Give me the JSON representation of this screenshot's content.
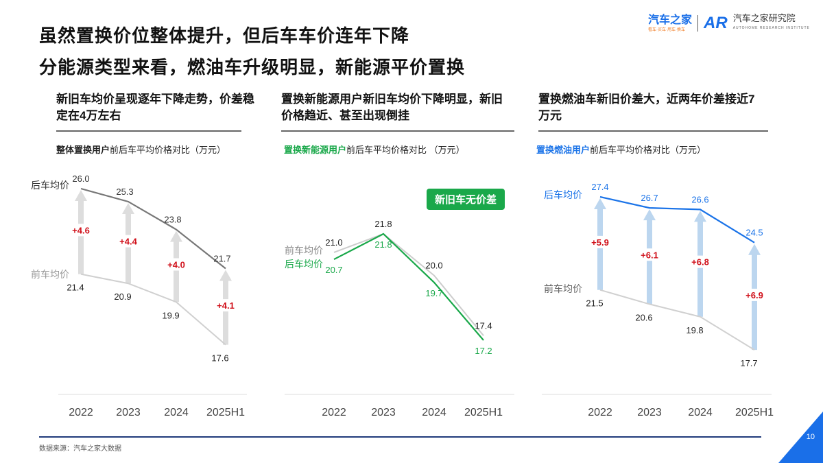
{
  "header": {
    "title_line1": "虽然置换价位整体提升，但后车车价连年下降",
    "title_line2": "分能源类型来看，燃油车升级明显，新能源平价置换"
  },
  "logo": {
    "brand": "汽车之家",
    "slogan": "看车·买车·用车·换车",
    "mark": "AR",
    "institute": "汽车之家研究院",
    "institute_en": "AUTOHOME RESEARCH INSTITUTE"
  },
  "panels": [
    {
      "heading": "新旧车均价呈现逐年下降走势，价差稳定在4万左右",
      "chart_title_bold": "整体置换用户",
      "chart_title_rest": "前后车平均价格对比（万元）",
      "accent": "#222222"
    },
    {
      "heading": "置换新能源用户新旧车均价下降明显，新旧价格趋近、甚至出现倒挂",
      "chart_title_bold": "置换新能源用户",
      "chart_title_rest": "前后车平均价格对比 （万元）",
      "accent": "#1aa84a",
      "badge": "新旧车无价差"
    },
    {
      "heading": "置换燃油车新旧价差大，近两年价差接近7万元",
      "chart_title_bold": "置换燃油用户",
      "chart_title_rest": "前后车平均价格对比（万元）",
      "accent": "#1a73e8"
    }
  ],
  "chart_data": [
    {
      "type": "line",
      "categories": [
        "2022",
        "2023",
        "2024",
        "2025H1"
      ],
      "series": [
        {
          "name": "后车均价",
          "values": [
            26.0,
            25.3,
            23.8,
            21.7
          ],
          "color": "#777777"
        },
        {
          "name": "前车均价",
          "values": [
            21.4,
            20.9,
            19.9,
            17.6
          ],
          "color": "#d0d0d0"
        }
      ],
      "differences": [
        "+4.6",
        "+4.4",
        "+4.0",
        "+4.1"
      ],
      "arrow_color": "#dddddd",
      "diff_color": "#d0101a"
    },
    {
      "type": "line",
      "categories": [
        "2022",
        "2023",
        "2024",
        "2025H1"
      ],
      "series": [
        {
          "name": "后车均价",
          "values": [
            20.7,
            21.8,
            19.7,
            17.2
          ],
          "color": "#1aa84a"
        },
        {
          "name": "前车均价",
          "values": [
            21.0,
            21.8,
            20.0,
            17.4
          ],
          "color": "#cccccc"
        }
      ]
    },
    {
      "type": "line",
      "categories": [
        "2022",
        "2023",
        "2024",
        "2025H1"
      ],
      "series": [
        {
          "name": "后车均价",
          "values": [
            27.4,
            26.7,
            26.6,
            24.5
          ],
          "color": "#1a73e8"
        },
        {
          "name": "前车均价",
          "values": [
            21.5,
            20.6,
            19.8,
            17.7
          ],
          "color": "#d0d0d0"
        }
      ],
      "differences": [
        "+5.9",
        "+6.1",
        "+6.8",
        "+6.9"
      ],
      "arrow_color": "#bcd6ef",
      "diff_color": "#d0101a"
    }
  ],
  "footer": {
    "source": "数据来源：汽车之家大数据",
    "page": "10"
  }
}
